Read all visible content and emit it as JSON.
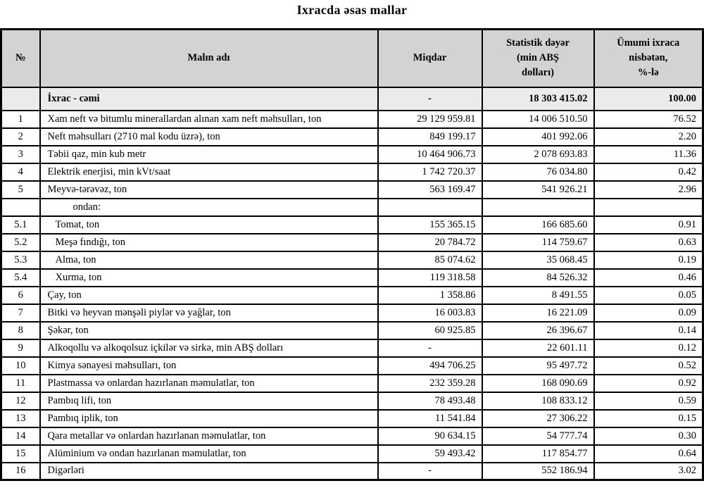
{
  "title": "Ixracda əsas mallar",
  "table": {
    "headers": {
      "no": "№",
      "name": "Malın adı",
      "qty": "Miqdar",
      "value": "Statistik dəyər\n(min ABŞ\ndolları)",
      "share": "Ümumi ixraca\nnisbətən,\n%-lə"
    },
    "total": {
      "no": "",
      "name": "İxrac - cəmi",
      "qty": "-",
      "value": "18 303 415.02",
      "share": "100.00"
    },
    "rows": [
      {
        "no": "1",
        "name": "Xam neft və bitumlu minerallardan alınan xam neft məhsulları, ton",
        "qty": "29 129 959.81",
        "value": "14 006 510.50",
        "share": "76.52",
        "indent": "none"
      },
      {
        "no": "2",
        "name": "Neft məhsulları (2710 mal kodu üzrə), ton",
        "qty": "849 199.17",
        "value": "401 992.06",
        "share": "2.20",
        "indent": "none"
      },
      {
        "no": "3",
        "name": "Təbii qaz, min kub metr",
        "qty": "10 464 906.73",
        "value": "2 078 693.83",
        "share": "11.36",
        "indent": "none"
      },
      {
        "no": "4",
        "name": "Elektrik enerjisi, min kVt/saat",
        "qty": "1 742 720.37",
        "value": "76 034.80",
        "share": "0.42",
        "indent": "none"
      },
      {
        "no": "5",
        "name": "Meyvə-tərəvəz, ton",
        "qty": "563 169.47",
        "value": "541 926.21",
        "share": "2.96",
        "indent": "none"
      },
      {
        "no": "",
        "name": "ondan:",
        "qty": "",
        "value": "",
        "share": "",
        "indent": "deep"
      },
      {
        "no": "5.1",
        "name": "Tomat, ton",
        "qty": "155 365.15",
        "value": "166 685.60",
        "share": "0.91",
        "indent": "sub"
      },
      {
        "no": "5.2",
        "name": "Meşə fındığı, ton",
        "qty": "20 784.72",
        "value": "114 759.67",
        "share": "0.63",
        "indent": "sub"
      },
      {
        "no": "5.3",
        "name": "Alma, ton",
        "qty": "85 074.62",
        "value": "35 068.45",
        "share": "0.19",
        "indent": "sub"
      },
      {
        "no": "5.4",
        "name": "Xurma, ton",
        "qty": "119 318.58",
        "value": "84 526.32",
        "share": "0.46",
        "indent": "sub"
      },
      {
        "no": "6",
        "name": "Çay, ton",
        "qty": "1 358.86",
        "value": "8 491.55",
        "share": "0.05",
        "indent": "none"
      },
      {
        "no": "7",
        "name": "Bitki və heyvan mənşəli piylər və yağlar, ton",
        "qty": "16 003.83",
        "value": "16 221.09",
        "share": "0.09",
        "indent": "none"
      },
      {
        "no": "8",
        "name": "Şəkər, ton",
        "qty": "60 925.85",
        "value": "26 396.67",
        "share": "0.14",
        "indent": "none"
      },
      {
        "no": "9",
        "name": "Alkoqollu və alkoqolsuz içkilər və sirkə, min ABŞ dolları",
        "qty": "-",
        "value": "22 601.11",
        "share": "0.12",
        "indent": "none"
      },
      {
        "no": "10",
        "name": "Kimya sənayesi məhsulları, ton",
        "qty": "494 706.25",
        "value": "95 497.72",
        "share": "0.52",
        "indent": "none"
      },
      {
        "no": "11",
        "name": "Plastmassa və onlardan hazırlanan məmulatlar, ton",
        "qty": "232 359.28",
        "value": "168 090.69",
        "share": "0.92",
        "indent": "none"
      },
      {
        "no": "12",
        "name": "Pambıq lifi, ton",
        "qty": "78 493.48",
        "value": "108 833.12",
        "share": "0.59",
        "indent": "none"
      },
      {
        "no": "13",
        "name": "Pambıq iplik, ton",
        "qty": "11 541.84",
        "value": "27 306.22",
        "share": "0.15",
        "indent": "none"
      },
      {
        "no": "14",
        "name": "Qara metallar və onlardan hazırlanan məmulatlar, ton",
        "qty": "90 634.15",
        "value": "54 777.74",
        "share": "0.30",
        "indent": "none"
      },
      {
        "no": "15",
        "name": "Alüminium və ondan hazırlanan məmulatlar, ton",
        "qty": "59 493.42",
        "value": "117 854.77",
        "share": "0.64",
        "indent": "none"
      },
      {
        "no": "16",
        "name": "Digərləri",
        "qty": "-",
        "value": "552 186.94",
        "share": "3.02",
        "indent": "none"
      }
    ],
    "colors": {
      "header_bg": "#d3d3d3",
      "total_row_bg": "#ebebeb",
      "border": "#000000"
    }
  }
}
